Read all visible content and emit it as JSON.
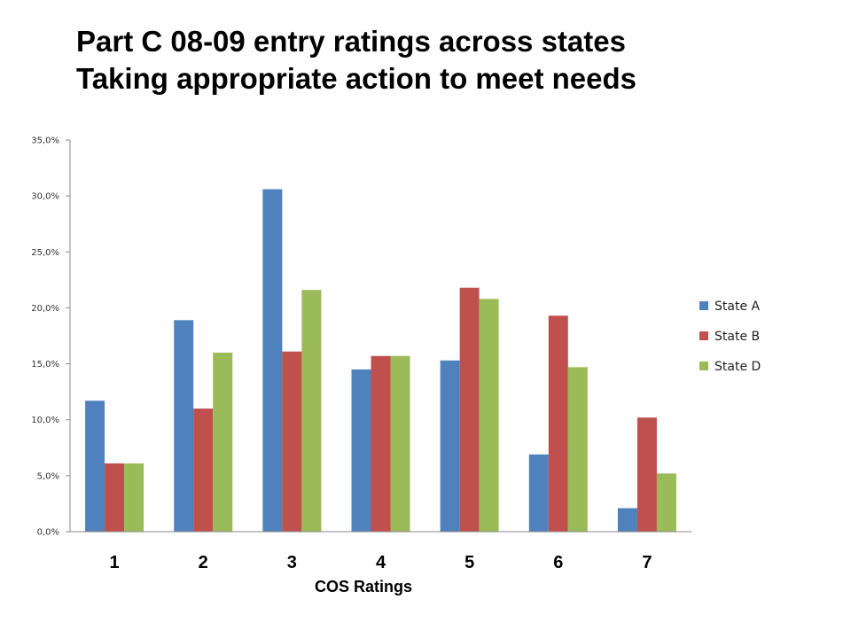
{
  "page": {
    "title_line1": "Part C 08-09 entry ratings across states",
    "title_line2": "Taking appropriate action to meet needs"
  },
  "chart_data": {
    "type": "bar",
    "title": "",
    "xlabel": "COS Ratings",
    "ylabel": "",
    "categories": [
      "1",
      "2",
      "3",
      "4",
      "5",
      "6",
      "7"
    ],
    "y_ticks": [
      "0,0%",
      "5,0%",
      "10,0%",
      "15,0%",
      "20,0%",
      "25,0%",
      "30,0%",
      "35,0%"
    ],
    "ylim": [
      0,
      35
    ],
    "series": [
      {
        "name": "State A",
        "color": "#4F81BD",
        "values": [
          11.7,
          18.9,
          30.6,
          14.5,
          15.3,
          6.9,
          2.1
        ]
      },
      {
        "name": "State B",
        "color": "#C0504D",
        "values": [
          6.1,
          11.0,
          16.1,
          15.7,
          21.8,
          19.3,
          10.2
        ]
      },
      {
        "name": "State D",
        "color": "#9BBB59",
        "values": [
          6.1,
          16.0,
          21.6,
          15.7,
          20.8,
          14.7,
          5.2
        ]
      }
    ],
    "legend_position": "right",
    "grid": false
  }
}
